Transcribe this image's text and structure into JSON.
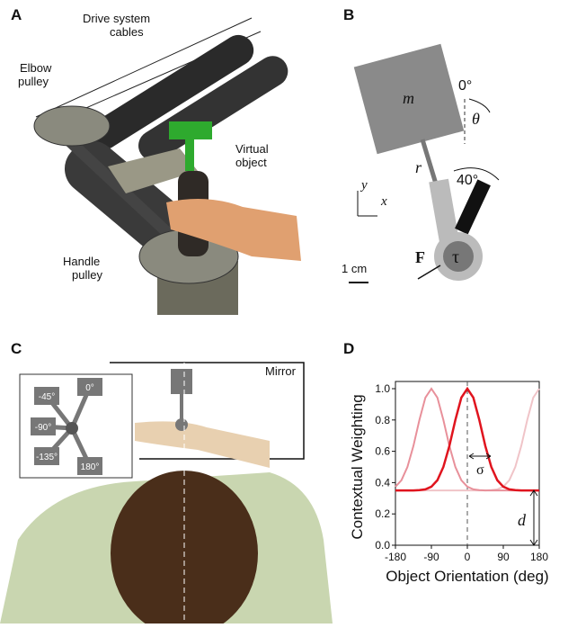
{
  "panels": {
    "a": {
      "letter": "A",
      "drive": [
        "Drive system",
        "cables"
      ],
      "elbow": [
        "Elbow",
        "pulley"
      ],
      "virtual": [
        "Virtual",
        "object"
      ],
      "handle": [
        "Handle",
        "pulley"
      ]
    },
    "b": {
      "letter": "B",
      "mass": "m",
      "zero": "0°",
      "theta": "θ",
      "r": "r",
      "forty": "40°",
      "y": "y",
      "x": "x",
      "force": "F",
      "tau": "τ",
      "scale": "1 cm"
    },
    "c": {
      "letter": "C",
      "mirror": "Mirror",
      "orient": [
        "0°",
        "-45°",
        "-90°",
        "-135°",
        "180°"
      ]
    },
    "d": {
      "letter": "D"
    }
  },
  "chart_data": {
    "type": "line",
    "xlabel": "Object Orientation (deg)",
    "ylabel": "Contextual Weighting",
    "x": [
      -180,
      -165,
      -150,
      -135,
      -120,
      -105,
      -90,
      -75,
      -60,
      -45,
      -30,
      -15,
      0,
      15,
      30,
      45,
      60,
      75,
      90,
      105,
      120,
      135,
      150,
      165,
      180
    ],
    "series": [
      {
        "color": "#f0c4c8",
        "values": [
          0.35,
          0.35,
          0.35,
          0.35,
          0.35,
          0.35,
          0.35,
          0.35,
          0.35,
          0.35,
          0.35,
          0.35,
          0.35,
          0.35,
          0.35,
          0.35,
          0.352,
          0.357,
          0.374,
          0.415,
          0.5,
          0.634,
          0.8,
          0.943,
          1.0
        ]
      },
      {
        "color": "#e8909a",
        "values": [
          0.374,
          0.415,
          0.5,
          0.634,
          0.8,
          0.943,
          1.0,
          0.943,
          0.8,
          0.634,
          0.5,
          0.415,
          0.374,
          0.357,
          0.352,
          0.35,
          0.35,
          0.35,
          0.35,
          0.35,
          0.35,
          0.35,
          0.35,
          0.35,
          0.35
        ]
      },
      {
        "color": "#e0141e",
        "values": [
          0.35,
          0.35,
          0.35,
          0.35,
          0.352,
          0.357,
          0.374,
          0.415,
          0.5,
          0.634,
          0.8,
          0.943,
          1.0,
          0.943,
          0.8,
          0.634,
          0.5,
          0.415,
          0.374,
          0.357,
          0.352,
          0.35,
          0.35,
          0.35,
          0.35
        ]
      }
    ],
    "xlim": [
      -180,
      180
    ],
    "xticks": [
      -180,
      -90,
      0,
      90,
      180
    ],
    "ylim": [
      0,
      1
    ],
    "yticks": [
      {
        "value": 0,
        "label": "0.0"
      },
      0.2,
      0.4,
      0.6,
      0.8,
      {
        "value": 1,
        "label": "1.0"
      }
    ],
    "dashed_y": 0.35,
    "dashed_x": 0,
    "sigma": "σ",
    "d": "d"
  }
}
